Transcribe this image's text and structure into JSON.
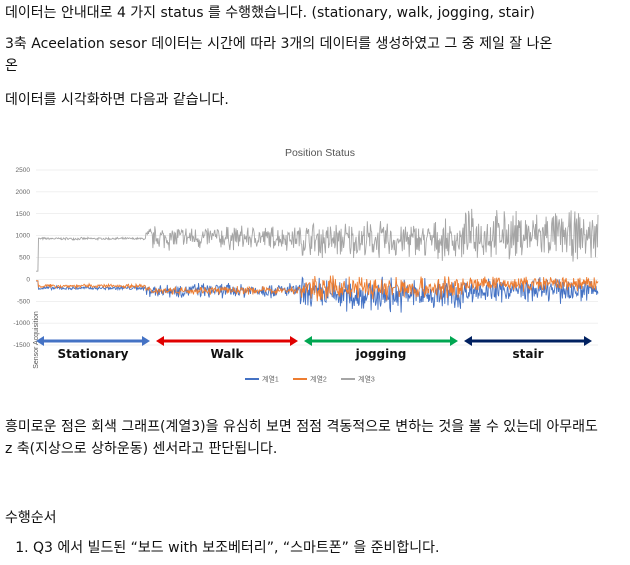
{
  "paragraphs": {
    "p1": "데이터는 안내대로 4 가지 status 를 수행했습니다. (stationary, walk, jogging, stair)",
    "p2": "3축 Aceelation sesor 데이터는 시간에 따라 3개의 데이터를 생성하였고 그 중 제일 잘 나온",
    "p3": "데이터를 시각화하면 다음과 같습니다.",
    "p4": "흥미로운 점은 회색 그래프(계열3)을 유심히 보면 점점 격동적으로 변하는 것을 볼 수 있는데 아무래도 z 축(지상으로 상하운동) 센서라고 판단됩니다.",
    "p5": "수행순서"
  },
  "steps": [
    "Q3 에서 빌드된 “보드 with  보조베터리”,  “스마트폰” 을 준비합니다."
  ],
  "chart_data": {
    "type": "line",
    "title": "Position  Status",
    "ylabel": "Sensor Acquisition",
    "ylim": [
      -1500,
      2500
    ],
    "yticks": [
      2500,
      2000,
      1500,
      1000,
      500,
      0,
      -500,
      -1000,
      -1500
    ],
    "series": [
      {
        "name": "계열1",
        "color": "#4472C4",
        "phases": [
          [
            -200,
            40
          ],
          [
            -250,
            150
          ],
          [
            -350,
            350
          ],
          [
            -250,
            250
          ]
        ]
      },
      {
        "name": "계열2",
        "color": "#ED7D31",
        "phases": [
          [
            -150,
            40
          ],
          [
            -250,
            80
          ],
          [
            -200,
            250
          ],
          [
            -100,
            150
          ]
        ]
      },
      {
        "name": "계열3",
        "color": "#A5A5A5",
        "phases": [
          [
            930,
            25
          ],
          [
            950,
            250
          ],
          [
            900,
            380
          ],
          [
            1000,
            500
          ]
        ]
      }
    ],
    "segments": [
      {
        "label": "Stationary",
        "color": "#4472C4"
      },
      {
        "label": "Walk",
        "color": "#E00000"
      },
      {
        "label": "jogging",
        "color": "#00A651"
      },
      {
        "label": "stair",
        "color": "#002060"
      }
    ]
  }
}
